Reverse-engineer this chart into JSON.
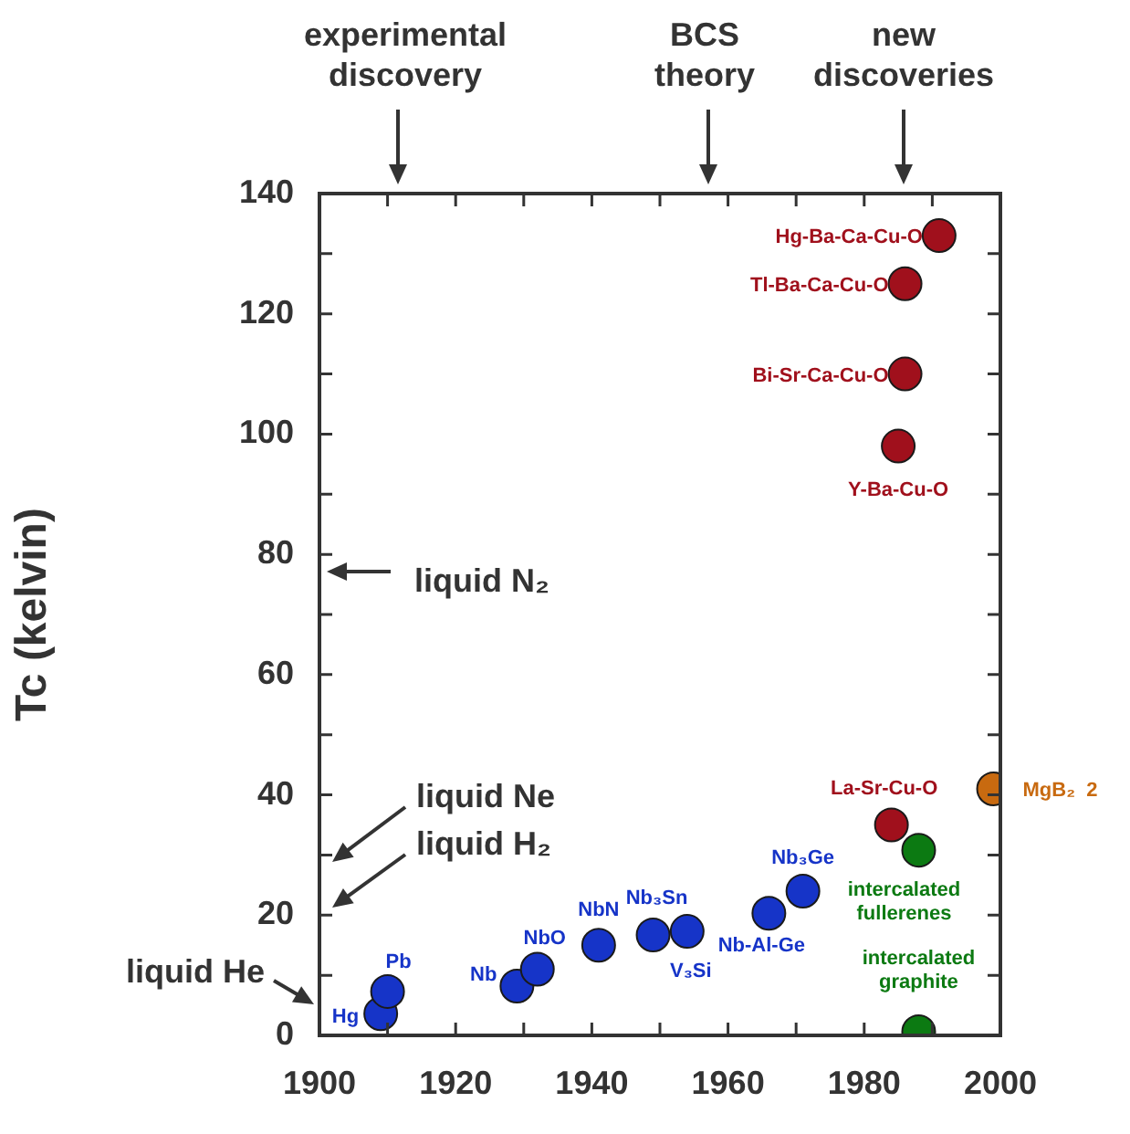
{
  "chart_data": {
    "type": "scatter",
    "ylabel": "Tc (kelvin)",
    "xlim": [
      1900,
      2000
    ],
    "ylim": [
      0,
      140
    ],
    "xticks": [
      1900,
      {
        "value": 1910,
        "label": null
      },
      1920,
      {
        "value": 1930,
        "label": null
      },
      1940,
      {
        "value": 1950,
        "label": null
      },
      1960,
      {
        "value": 1970,
        "label": null
      },
      1980,
      {
        "value": 1990,
        "label": null
      },
      2000
    ],
    "yticks": [
      0,
      {
        "value": 10,
        "label": null
      },
      20,
      {
        "value": 30,
        "label": null
      },
      40,
      {
        "value": 50,
        "label": null
      },
      60,
      {
        "value": 70,
        "label": null
      },
      80,
      {
        "value": 90,
        "label": null
      },
      100,
      {
        "value": 110,
        "label": null
      },
      120,
      {
        "value": 130,
        "label": null
      },
      140
    ],
    "marker": "circle",
    "series": [
      {
        "color": "#1634c8",
        "x": [
          1909,
          1910,
          1929,
          1932,
          1941,
          1949,
          1954,
          1966,
          1971
        ],
        "values": [
          3.6,
          7.3,
          8.2,
          11,
          15,
          16.7,
          17.3,
          20.3,
          24
        ]
      },
      {
        "color": "#a0101c",
        "x": [
          1984,
          1985,
          1986,
          1986,
          1991
        ],
        "values": [
          35,
          98,
          110,
          125,
          133
        ]
      },
      {
        "color": "#0c7a12",
        "x": [
          1988,
          1988
        ],
        "values": [
          30.8,
          0.6
        ]
      },
      {
        "color": "#c86a10",
        "x": [
          1999
        ],
        "values": [
          41
        ]
      }
    ],
    "annotations": [
      {
        "text": "Hg",
        "x": 1909,
        "y": 3.6
      },
      {
        "text": "Pb",
        "x": 1910,
        "y": 7.3
      },
      {
        "text": "Nb",
        "x": 1929,
        "y": 8.2
      },
      {
        "text": "NbO",
        "x": 1932,
        "y": 11
      },
      {
        "text": "NbN",
        "x": 1941,
        "y": 15
      },
      {
        "text": "Nb₃Sn",
        "x": 1949,
        "y": 16.7
      },
      {
        "text": "V₃Si",
        "x": 1954,
        "y": 17.3
      },
      {
        "text": "Nb-Al-Ge",
        "x": 1966,
        "y": 20.3
      },
      {
        "text": "Nb₃Ge",
        "x": 1971,
        "y": 24
      },
      {
        "text": "La-Sr-Cu-O",
        "x": 1984,
        "y": 35
      },
      {
        "text": "intercalated fullerenes",
        "x": 1988,
        "y": 30.8
      },
      {
        "text": "intercalated graphite",
        "x": 1988,
        "y": 0.6
      },
      {
        "text": "Y-Ba-Cu-O",
        "x": 1985,
        "y": 98
      },
      {
        "text": "Bi-Sr-Ca-Cu-O",
        "x": 1986,
        "y": 110
      },
      {
        "text": "Tl-Ba-Ca-Cu-O",
        "x": 1986,
        "y": 125
      },
      {
        "text": "Hg-Ba-Ca-Cu-O",
        "x": 1991,
        "y": 133
      },
      {
        "text": "MgB₂  2",
        "x": 1999,
        "y": 41
      },
      "liquid N₂",
      "liquid Ne",
      "liquid H₂",
      "liquid He",
      "experimental discovery",
      "BCS theory",
      "new discoveries"
    ]
  }
}
